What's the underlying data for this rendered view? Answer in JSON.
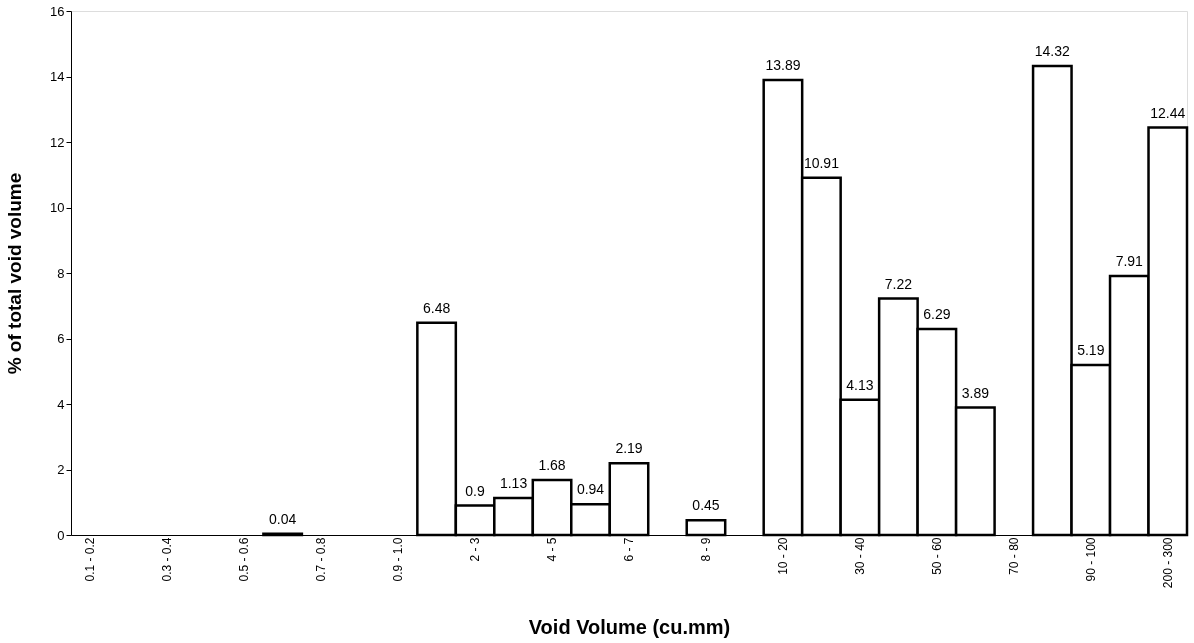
{
  "chart_data": {
    "type": "bar",
    "xlabel": "Void Volume (cu.mm)",
    "ylabel": "% of total void volume",
    "categories": [
      "0.1 - 0.2",
      null,
      "0.3 - 0.4",
      null,
      "0.5 - 0.6",
      null,
      "0.7 - 0.8",
      null,
      "0.9 - 1.0",
      null,
      "2 - 3",
      null,
      "4 - 5",
      null,
      "6 - 7",
      null,
      "8 - 9",
      null,
      "10 - 20",
      null,
      "30 - 40",
      null,
      "50 - 60",
      null,
      "70 - 80",
      null,
      "90 - 100",
      null,
      "200 - 300"
    ],
    "values": [
      0,
      0,
      0,
      0,
      0,
      0.04,
      0,
      0,
      0,
      6.48,
      0.9,
      1.13,
      1.68,
      0.94,
      2.19,
      0,
      0.45,
      0,
      13.89,
      10.91,
      4.13,
      7.22,
      6.29,
      3.89,
      0,
      14.32,
      5.19,
      7.91,
      12.44
    ],
    "value_labels": [
      null,
      null,
      null,
      null,
      null,
      "0.04",
      null,
      null,
      null,
      "6.48",
      "0.9",
      "1.13",
      "1.68",
      "0.94",
      "2.19",
      null,
      "0.45",
      null,
      "13.89",
      "10.91",
      "4.13",
      "7.22",
      "6.29",
      "3.89",
      null,
      "14.32",
      "5.19",
      "7.91",
      "12.44"
    ],
    "color": "#ffffff",
    "ylim": [
      0,
      16
    ],
    "yticks": [
      0,
      2,
      4,
      6,
      8,
      10,
      12,
      14,
      16
    ],
    "grid": false
  }
}
